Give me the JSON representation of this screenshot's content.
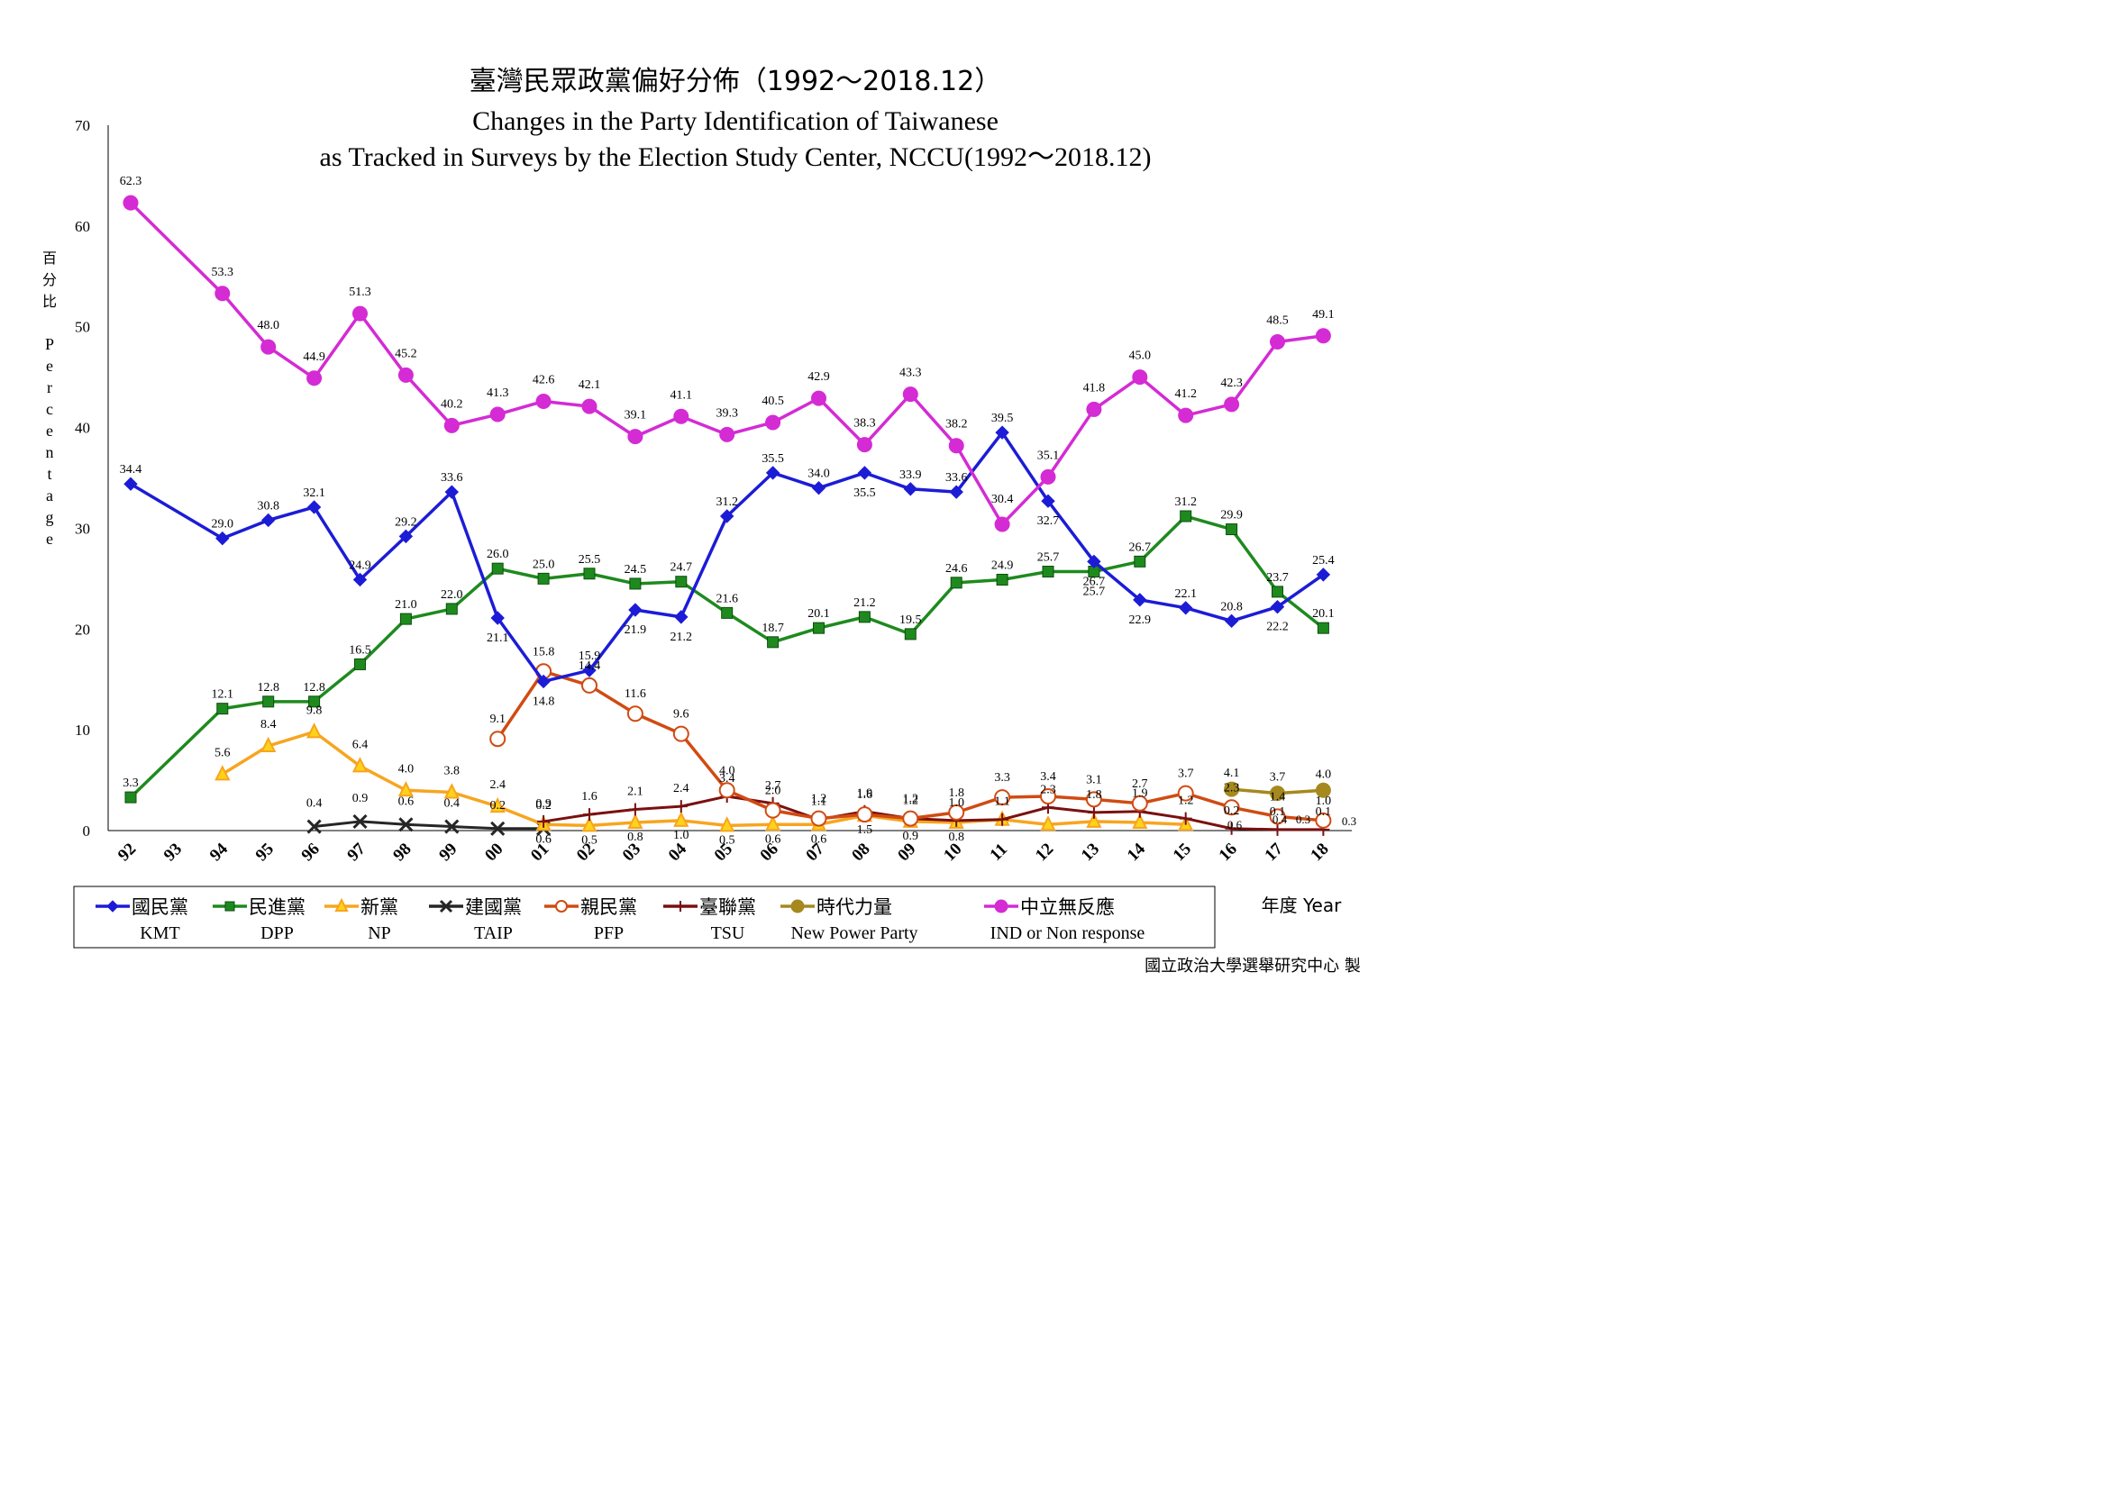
{
  "chart_data": {
    "type": "line",
    "title_zh": "臺灣民眾政黨偏好分佈（1992～2018.12）",
    "title_en_1": "Changes in the Party Identification of Taiwanese",
    "title_en_2": "as Tracked in Surveys by the Election Study Center, NCCU(1992～2018.12)",
    "ylabel_zh": "百分比",
    "ylabel_en": "Percentage",
    "xlabel": "年度 Year",
    "credit": "國立政治大學選舉研究中心 製",
    "ylim": [
      0,
      70
    ],
    "yticks": [
      "0",
      "10",
      "20",
      "30",
      "40",
      "50",
      "60",
      "70"
    ],
    "categories": [
      "92",
      "93",
      "94",
      "95",
      "96",
      "97",
      "98",
      "99",
      "00",
      "01",
      "02",
      "03",
      "04",
      "05",
      "06",
      "07",
      "08",
      "09",
      "10",
      "11",
      "12",
      "13",
      "14",
      "15",
      "16",
      "17",
      "18"
    ],
    "series": [
      {
        "key": "kmt",
        "name_zh": "國民黨",
        "name_en": "KMT",
        "color": "#1c1cd6",
        "marker": "diamond",
        "values": [
          34.4,
          null,
          29.0,
          30.8,
          32.1,
          24.9,
          29.2,
          33.6,
          21.1,
          14.8,
          15.9,
          21.9,
          21.2,
          31.2,
          35.5,
          34.0,
          35.5,
          33.9,
          33.6,
          39.5,
          32.7,
          26.7,
          22.9,
          22.1,
          20.8,
          22.2,
          25.4
        ]
      },
      {
        "key": "dpp",
        "name_zh": "民進黨",
        "name_en": "DPP",
        "color": "#1e8a1e",
        "marker": "square",
        "values": [
          3.3,
          null,
          12.1,
          12.8,
          12.8,
          16.5,
          21.0,
          22.0,
          26.0,
          25.0,
          25.5,
          24.5,
          24.7,
          21.6,
          18.7,
          20.1,
          21.2,
          19.5,
          24.6,
          24.9,
          25.7,
          25.7,
          26.7,
          31.2,
          29.9,
          23.7,
          20.1
        ]
      },
      {
        "key": "np",
        "name_zh": "新黨",
        "name_en": "NP",
        "color": "#f7a51f",
        "marker": "triangle",
        "values": [
          null,
          null,
          5.6,
          8.4,
          9.8,
          6.4,
          4.0,
          3.8,
          2.4,
          0.6,
          0.5,
          0.8,
          1.0,
          0.5,
          0.6,
          0.6,
          1.5,
          0.9,
          0.8,
          1.1,
          0.6,
          0.9,
          0.8,
          0.6,
          null,
          null,
          null
        ]
      },
      {
        "key": "taip",
        "name_zh": "建國黨",
        "name_en": "TAIP",
        "color": "#262626",
        "marker": "x",
        "values": [
          null,
          null,
          null,
          null,
          0.4,
          0.9,
          0.6,
          0.4,
          0.2,
          0.2,
          null,
          null,
          null,
          null,
          null,
          null,
          null,
          null,
          null,
          null,
          null,
          null,
          null,
          null,
          null,
          null,
          null
        ]
      },
      {
        "key": "pfp",
        "name_zh": "親民黨",
        "name_en": "PFP",
        "color": "#d04b12",
        "marker": "circle",
        "values": [
          null,
          null,
          null,
          null,
          null,
          null,
          null,
          null,
          9.1,
          15.8,
          14.4,
          11.6,
          9.6,
          4.0,
          2.0,
          1.2,
          1.6,
          1.2,
          1.8,
          3.3,
          3.4,
          3.1,
          2.7,
          3.7,
          2.3,
          1.4,
          1.0
        ]
      },
      {
        "key": "tsu",
        "name_zh": "臺聯黨",
        "name_en": "TSU",
        "color": "#7a1010",
        "marker": "plus",
        "values": [
          null,
          null,
          null,
          null,
          null,
          null,
          null,
          null,
          null,
          0.9,
          1.6,
          2.1,
          2.4,
          3.4,
          2.7,
          1.1,
          1.9,
          1.2,
          1.0,
          1.1,
          2.3,
          1.8,
          1.9,
          1.2,
          0.2,
          0.1,
          0.1
        ]
      },
      {
        "key": "npp",
        "name_zh": "時代力量",
        "name_en": "New Power Party",
        "color": "#a5891f",
        "marker": "dot",
        "values": [
          null,
          null,
          null,
          null,
          null,
          null,
          null,
          null,
          null,
          null,
          null,
          null,
          null,
          null,
          null,
          null,
          null,
          null,
          null,
          null,
          null,
          null,
          null,
          null,
          4.1,
          3.7,
          4.0
        ]
      },
      {
        "key": "ind",
        "name_zh": "中立無反應",
        "name_en": "IND or Non response",
        "color": "#d42bd4",
        "marker": "dot",
        "values": [
          62.3,
          null,
          53.3,
          48.0,
          44.9,
          51.3,
          45.2,
          40.2,
          41.3,
          42.6,
          42.1,
          39.1,
          41.1,
          39.3,
          40.5,
          42.9,
          38.3,
          43.3,
          38.2,
          30.4,
          35.1,
          41.8,
          45.0,
          41.2,
          42.3,
          48.5,
          49.1
        ]
      }
    ],
    "data_labels": [
      {
        "series": "ind",
        "text": [
          "62.3",
          "",
          "53.3",
          "48.0",
          "44.9",
          "51.3",
          "45.2",
          "40.2",
          "41.3",
          "42.6",
          "42.1",
          "39.1",
          "41.1",
          "39.3",
          "40.5",
          "42.9",
          "38.3",
          "43.3",
          "38.2",
          "30.4",
          "35.1",
          "41.8",
          "45.0",
          "41.2",
          "42.3",
          "48.5",
          "49.1"
        ]
      },
      {
        "series": "kmt",
        "text": [
          "34.4",
          "",
          "29.0",
          "30.8",
          "32.1",
          "24.9",
          "29.2",
          "33.6",
          "21.1",
          "14.8",
          "15.9",
          "21.9",
          "21.2",
          "31.2",
          "35.5",
          "34.0",
          "35.5",
          "33.9",
          "33.6",
          "39.5",
          "32.7",
          "26.7",
          "22.9",
          "22.1",
          "20.8",
          "22.2",
          "25.4"
        ]
      },
      {
        "series": "dpp",
        "text": [
          "3.3",
          "",
          "12.1",
          "12.8",
          "12.8",
          "16.5",
          "21.0",
          "22.0",
          "26.0",
          "25.0",
          "25.5",
          "24.5",
          "24.7",
          "21.6",
          "18.7",
          "20.1",
          "21.2",
          "19.5",
          "24.6",
          "24.9",
          "25.7",
          "25.7",
          "26.7",
          "31.2",
          "29.9",
          "23.7",
          "20.1"
        ]
      },
      {
        "series": "np",
        "text": [
          "",
          "",
          "5.6",
          "8.4",
          "9.8",
          "6.4",
          "4.0",
          "3.8",
          "2.4",
          "0.6",
          "0.5",
          "0.8",
          "1.0",
          "0.5",
          "0.6",
          "0.6",
          "1.5",
          "0.9",
          "0.8",
          "",
          "",
          "",
          "",
          "",
          "",
          "",
          ""
        ]
      },
      {
        "series": "taip",
        "text": [
          "",
          "",
          "",
          "",
          "0.4",
          "0.9",
          "0.6",
          "0.4",
          "0.2",
          "0.2",
          "",
          "",
          "",
          "",
          "",
          "",
          "",
          "",
          "",
          "",
          "",
          "",
          "",
          "",
          "",
          "",
          ""
        ]
      },
      {
        "series": "pfp",
        "text": [
          "",
          "",
          "",
          "",
          "",
          "",
          "",
          "",
          "9.1",
          "15.8",
          "14.4",
          "11.6",
          "9.6",
          "4.0",
          "2.0",
          "1.2",
          "1.6",
          "1.2",
          "1.8",
          "3.3",
          "3.4",
          "3.1",
          "2.7",
          "3.7",
          "2.3",
          "1.4",
          "1.0"
        ]
      },
      {
        "series": "tsu",
        "text": [
          "",
          "",
          "",
          "",
          "",
          "",
          "",
          "",
          "",
          "0.9",
          "1.6",
          "2.1",
          "2.4",
          "3.4",
          "2.7",
          "1.1",
          "1.9",
          "1.2",
          "1.0",
          "1.1",
          "2.3",
          "1.8",
          "1.9",
          "1.2",
          "0.2",
          "0.1",
          "0.1"
        ]
      },
      {
        "series": "npp",
        "text": [
          "",
          "",
          "",
          "",
          "",
          "",
          "",
          "",
          "",
          "",
          "",
          "",
          "",
          "",
          "",
          "",
          "",
          "",
          "",
          "",
          "",
          "",
          "",
          "",
          "4.1",
          "3.7",
          "4.0"
        ]
      }
    ],
    "extra_labels": [
      "0.6",
      "0.3",
      "0.4",
      "0.3"
    ],
    "grid": false,
    "legend_position": "bottom"
  }
}
